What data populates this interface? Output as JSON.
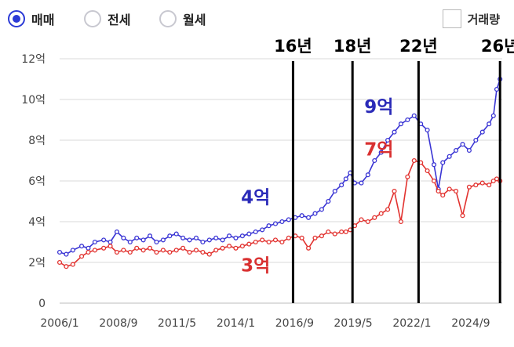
{
  "radio_options": [
    {
      "label": "매매",
      "selected": true
    },
    {
      "label": "전세",
      "selected": false
    },
    {
      "label": "월세",
      "selected": false
    }
  ],
  "volume_toggle": {
    "label": "거래량",
    "checked": false
  },
  "colors": {
    "sale": "#3a35d4",
    "jeonse": "#e2322f",
    "accent": "#2b3ad6",
    "grid": "#d9d9d9",
    "marker_line": "#000000"
  },
  "chart_data": {
    "type": "line",
    "title": "",
    "xlabel": "",
    "ylabel": "",
    "ylim": [
      0,
      12
    ],
    "yticks": [
      {
        "value": 0,
        "label": "0"
      },
      {
        "value": 2,
        "label": "2억"
      },
      {
        "value": 4,
        "label": "4억"
      },
      {
        "value": 6,
        "label": "6억"
      },
      {
        "value": 8,
        "label": "8억"
      },
      {
        "value": 10,
        "label": "10억"
      },
      {
        "value": 12,
        "label": "12억"
      }
    ],
    "xlim": [
      2006.0,
      2026.1
    ],
    "xticks": [
      {
        "value": 2006.0,
        "label": "2006/1"
      },
      {
        "value": 2008.67,
        "label": "2008/9"
      },
      {
        "value": 2011.33,
        "label": "2011/5"
      },
      {
        "value": 2014.0,
        "label": "2014/1"
      },
      {
        "value": 2016.67,
        "label": "2016/9"
      },
      {
        "value": 2019.33,
        "label": "2019/5"
      },
      {
        "value": 2022.0,
        "label": "2022/1"
      },
      {
        "value": 2024.67,
        "label": "2024/9"
      }
    ],
    "grid": true,
    "vertical_markers": [
      {
        "x": 2016.6,
        "label": "16년"
      },
      {
        "x": 2019.3,
        "label": "18년"
      },
      {
        "x": 2022.3,
        "label": "22년"
      },
      {
        "x": 2026.0,
        "label": "26년"
      }
    ],
    "annotations": [
      {
        "text": "4억",
        "x": 2014.9,
        "y": 4.9,
        "color": "#2a2ab8"
      },
      {
        "text": "3억",
        "x": 2014.9,
        "y": 1.55,
        "color": "#d93030"
      },
      {
        "text": "9억",
        "x": 2020.5,
        "y": 9.35,
        "color": "#2a2ab8"
      },
      {
        "text": "7억",
        "x": 2020.5,
        "y": 7.25,
        "color": "#d93030"
      }
    ],
    "series": [
      {
        "color": "#3a35d4",
        "x": [
          2006.0,
          2006.3,
          2006.6,
          2007.0,
          2007.3,
          2007.6,
          2008.0,
          2008.3,
          2008.6,
          2008.9,
          2009.2,
          2009.5,
          2009.8,
          2010.1,
          2010.4,
          2010.7,
          2011.0,
          2011.3,
          2011.6,
          2011.9,
          2012.2,
          2012.5,
          2012.8,
          2013.1,
          2013.4,
          2013.7,
          2014.0,
          2014.3,
          2014.6,
          2014.9,
          2015.2,
          2015.5,
          2015.8,
          2016.1,
          2016.4,
          2016.7,
          2017.0,
          2017.3,
          2017.6,
          2017.9,
          2018.2,
          2018.5,
          2018.8,
          2019.0,
          2019.2,
          2019.4,
          2019.7,
          2020.0,
          2020.3,
          2020.6,
          2020.9,
          2021.2,
          2021.5,
          2021.8,
          2022.1,
          2022.4,
          2022.7,
          2023.0,
          2023.2,
          2023.4,
          2023.7,
          2024.0,
          2024.3,
          2024.6,
          2024.9,
          2025.2,
          2025.5,
          2025.7,
          2025.85,
          2026.0
        ],
        "values": [
          2.5,
          2.4,
          2.6,
          2.8,
          2.7,
          3.0,
          3.1,
          3.0,
          3.5,
          3.2,
          3.0,
          3.2,
          3.1,
          3.3,
          3.0,
          3.1,
          3.3,
          3.4,
          3.2,
          3.1,
          3.2,
          3.0,
          3.1,
          3.2,
          3.1,
          3.3,
          3.2,
          3.3,
          3.4,
          3.5,
          3.6,
          3.8,
          3.9,
          4.0,
          4.1,
          4.2,
          4.3,
          4.2,
          4.4,
          4.6,
          5.0,
          5.5,
          5.8,
          6.1,
          6.4,
          5.9,
          5.9,
          6.3,
          7.0,
          7.4,
          8.0,
          8.4,
          8.8,
          9.0,
          9.2,
          8.8,
          8.5,
          6.8,
          5.6,
          6.9,
          7.2,
          7.5,
          7.8,
          7.5,
          8.0,
          8.4,
          8.8,
          9.2,
          10.5,
          11.0
        ]
      },
      {
        "color": "#e2322f",
        "x": [
          2006.0,
          2006.3,
          2006.6,
          2007.0,
          2007.3,
          2007.6,
          2008.0,
          2008.3,
          2008.6,
          2008.9,
          2009.2,
          2009.5,
          2009.8,
          2010.1,
          2010.4,
          2010.7,
          2011.0,
          2011.3,
          2011.6,
          2011.9,
          2012.2,
          2012.5,
          2012.8,
          2013.1,
          2013.4,
          2013.7,
          2014.0,
          2014.3,
          2014.6,
          2014.9,
          2015.2,
          2015.5,
          2015.8,
          2016.1,
          2016.4,
          2016.7,
          2017.0,
          2017.3,
          2017.6,
          2017.9,
          2018.2,
          2018.5,
          2018.8,
          2019.0,
          2019.2,
          2019.4,
          2019.7,
          2020.0,
          2020.3,
          2020.6,
          2020.9,
          2021.2,
          2021.5,
          2021.8,
          2022.1,
          2022.4,
          2022.7,
          2023.0,
          2023.2,
          2023.4,
          2023.7,
          2024.0,
          2024.3,
          2024.6,
          2024.9,
          2025.2,
          2025.5,
          2025.7,
          2025.85,
          2026.0
        ],
        "values": [
          2.0,
          1.8,
          1.9,
          2.3,
          2.5,
          2.6,
          2.7,
          2.8,
          2.5,
          2.6,
          2.5,
          2.7,
          2.6,
          2.7,
          2.5,
          2.6,
          2.5,
          2.6,
          2.7,
          2.5,
          2.6,
          2.5,
          2.4,
          2.6,
          2.7,
          2.8,
          2.7,
          2.8,
          2.9,
          3.0,
          3.1,
          3.0,
          3.1,
          3.0,
          3.2,
          3.3,
          3.2,
          2.7,
          3.2,
          3.3,
          3.5,
          3.4,
          3.5,
          3.5,
          3.6,
          3.8,
          4.1,
          4.0,
          4.2,
          4.4,
          4.6,
          5.5,
          4.0,
          6.2,
          7.0,
          6.9,
          6.5,
          6.0,
          5.5,
          5.3,
          5.6,
          5.5,
          4.3,
          5.7,
          5.8,
          5.9,
          5.8,
          6.0,
          6.1,
          6.0
        ]
      }
    ]
  }
}
